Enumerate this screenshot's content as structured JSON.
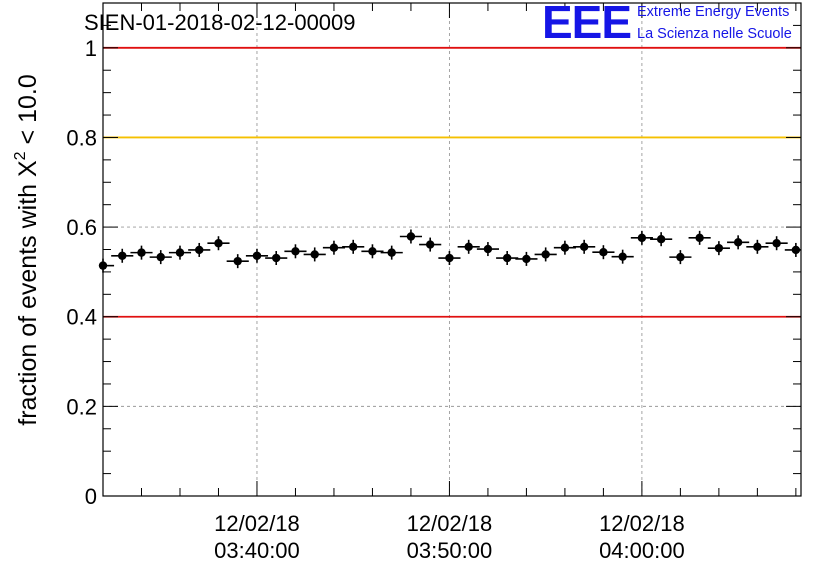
{
  "header": {
    "run_title": "SIEN-01-2018-02-12-00009"
  },
  "logo": {
    "mark": "EEE",
    "line1": "Extreme Energy Events",
    "line2": "La Scienza nelle Scuole",
    "color": "#1515e6"
  },
  "chart_data": {
    "type": "scatter",
    "title": "",
    "xlabel": "",
    "ylabel_prefix": "fraction of events with ",
    "ylabel_symbol": "X",
    "ylabel_power": "2",
    "ylabel_suffix": " < 10.0",
    "ylim": [
      0,
      1.1
    ],
    "xlim": [
      "03:32:00",
      "04:08:16"
    ],
    "y_ticks": [
      "0",
      "0.2",
      "0.4",
      "0.6",
      "0.8",
      "1"
    ],
    "y_tick_values": [
      0,
      0.2,
      0.4,
      0.6,
      0.8,
      1
    ],
    "x_ticks": [
      {
        "value": "03:40:00",
        "date": "12/02/18",
        "time": "03:40:00"
      },
      {
        "value": "03:50:00",
        "date": "12/02/18",
        "time": "03:50:00"
      },
      {
        "value": "04:00:00",
        "date": "12/02/18",
        "time": "04:00:00"
      }
    ],
    "grid": true,
    "reference_lines": [
      {
        "y": 1.0,
        "color": "#e01010"
      },
      {
        "y": 0.8,
        "color": "#f5c000"
      },
      {
        "y": 0.4,
        "color": "#e01010"
      }
    ],
    "bin_width_seconds": 60,
    "points": [
      {
        "x": "03:32:00",
        "y": 0.514
      },
      {
        "x": "03:33:00",
        "y": 0.536
      },
      {
        "x": "03:34:00",
        "y": 0.543
      },
      {
        "x": "03:35:00",
        "y": 0.533
      },
      {
        "x": "03:36:00",
        "y": 0.543
      },
      {
        "x": "03:37:00",
        "y": 0.549
      },
      {
        "x": "03:38:00",
        "y": 0.564
      },
      {
        "x": "03:39:00",
        "y": 0.524
      },
      {
        "x": "03:40:00",
        "y": 0.536
      },
      {
        "x": "03:41:00",
        "y": 0.531
      },
      {
        "x": "03:42:00",
        "y": 0.546
      },
      {
        "x": "03:43:00",
        "y": 0.539
      },
      {
        "x": "03:44:00",
        "y": 0.554
      },
      {
        "x": "03:45:00",
        "y": 0.556
      },
      {
        "x": "03:46:00",
        "y": 0.546
      },
      {
        "x": "03:47:00",
        "y": 0.543
      },
      {
        "x": "03:48:00",
        "y": 0.579
      },
      {
        "x": "03:49:00",
        "y": 0.561
      },
      {
        "x": "03:50:00",
        "y": 0.531
      },
      {
        "x": "03:51:00",
        "y": 0.556
      },
      {
        "x": "03:52:00",
        "y": 0.551
      },
      {
        "x": "03:53:00",
        "y": 0.531
      },
      {
        "x": "03:54:00",
        "y": 0.529
      },
      {
        "x": "03:55:00",
        "y": 0.539
      },
      {
        "x": "03:56:00",
        "y": 0.554
      },
      {
        "x": "03:57:00",
        "y": 0.556
      },
      {
        "x": "03:58:00",
        "y": 0.544
      },
      {
        "x": "03:59:00",
        "y": 0.534
      },
      {
        "x": "04:00:00",
        "y": 0.576
      },
      {
        "x": "04:01:00",
        "y": 0.573
      },
      {
        "x": "04:02:00",
        "y": 0.533
      },
      {
        "x": "04:03:00",
        "y": 0.576
      },
      {
        "x": "04:04:00",
        "y": 0.553
      },
      {
        "x": "04:05:00",
        "y": 0.566
      },
      {
        "x": "04:06:00",
        "y": 0.556
      },
      {
        "x": "04:07:00",
        "y": 0.564
      },
      {
        "x": "04:08:00",
        "y": 0.549
      }
    ]
  }
}
